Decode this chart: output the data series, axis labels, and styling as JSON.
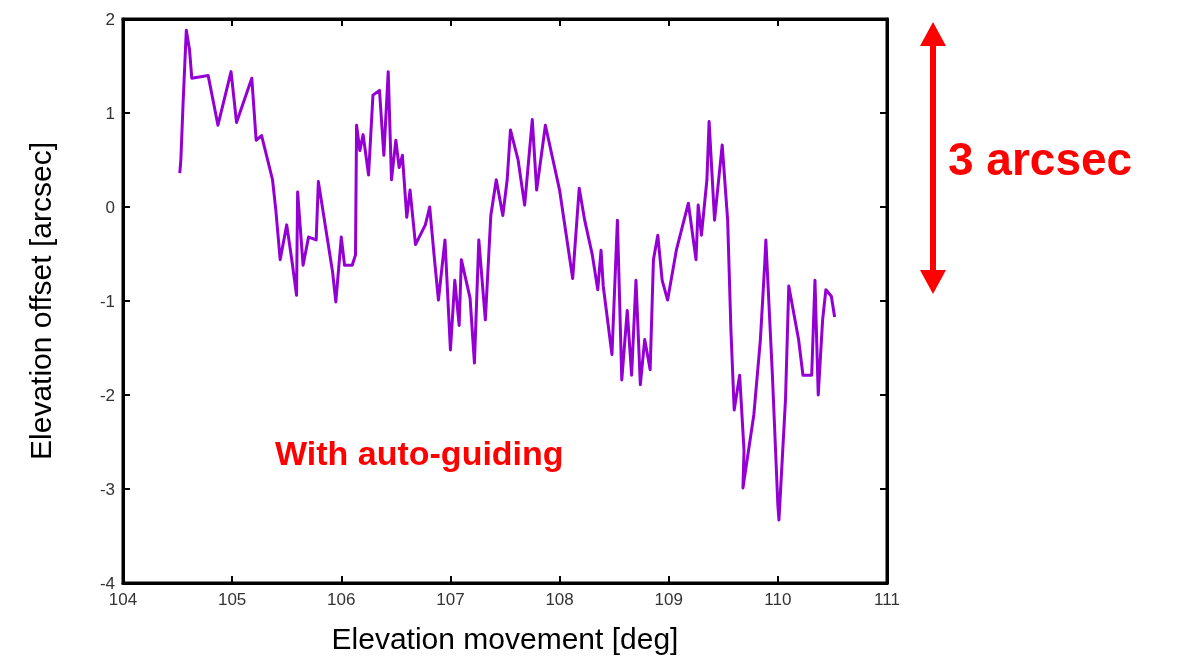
{
  "chart_data": {
    "type": "line",
    "xlabel": "Elevation movement [deg]",
    "ylabel": "Elevation offset [arcsec]",
    "annotations": [
      "3 arcsec",
      "With auto-guiding"
    ],
    "xlim": [
      104,
      111
    ],
    "xticks": [
      104,
      105,
      106,
      107,
      108,
      109,
      110,
      111
    ],
    "ylim": [
      -4,
      2
    ],
    "yticks": [
      -4,
      -3,
      -2,
      -1,
      0,
      1,
      2
    ],
    "grid": false,
    "marker": "none",
    "line_style": "solid",
    "series": [
      {
        "color": "#9400d3",
        "x": [
          104.52,
          104.53,
          104.55,
          104.58,
          104.61,
          104.63,
          104.78,
          104.87,
          104.99,
          105.04,
          105.18,
          105.22,
          105.27,
          105.37,
          105.4,
          105.44,
          105.5,
          105.55,
          105.59,
          105.6,
          105.65,
          105.7,
          105.77,
          105.79,
          105.92,
          105.95,
          106.0,
          106.03,
          106.1,
          106.13,
          106.14,
          106.17,
          106.2,
          106.25,
          106.29,
          106.35,
          106.39,
          106.43,
          106.46,
          106.5,
          106.53,
          106.56,
          106.6,
          106.63,
          106.68,
          106.77,
          106.81,
          106.85,
          106.89,
          106.95,
          107.0,
          107.04,
          107.08,
          107.1,
          107.18,
          107.22,
          107.26,
          107.32,
          107.37,
          107.42,
          107.48,
          107.52,
          107.55,
          107.62,
          107.68,
          107.75,
          107.79,
          107.87,
          108.0,
          108.12,
          108.18,
          108.23,
          108.3,
          108.35,
          108.38,
          108.4,
          108.48,
          108.53,
          108.57,
          108.62,
          108.66,
          108.7,
          108.74,
          108.78,
          108.83,
          108.86,
          108.9,
          108.94,
          108.99,
          109.07,
          109.18,
          109.25,
          109.27,
          109.3,
          109.35,
          109.37,
          109.42,
          109.49,
          109.54,
          109.57,
          109.6,
          109.65,
          109.69,
          109.68,
          109.78,
          109.84,
          109.88,
          109.89,
          109.95,
          110.0,
          110.01,
          110.07,
          110.1,
          110.19,
          110.23,
          110.31,
          110.34,
          110.37,
          110.41,
          110.44,
          110.49,
          110.52
        ],
        "values": [
          0.36,
          0.5,
          1.09,
          1.88,
          1.67,
          1.37,
          1.4,
          0.87,
          1.44,
          0.9,
          1.37,
          0.71,
          0.76,
          0.29,
          -0.03,
          -0.56,
          -0.19,
          -0.59,
          -0.94,
          0.16,
          -0.62,
          -0.32,
          -0.35,
          0.27,
          -0.69,
          -1.01,
          -0.32,
          -0.62,
          -0.62,
          -0.51,
          0.87,
          0.6,
          0.77,
          0.34,
          1.19,
          1.24,
          0.55,
          1.44,
          0.29,
          0.71,
          0.42,
          0.55,
          -0.11,
          0.18,
          -0.4,
          -0.19,
          0,
          -0.51,
          -0.99,
          -0.35,
          -1.52,
          -0.78,
          -1.26,
          -0.56,
          -0.97,
          -1.66,
          -0.35,
          -1.2,
          -0.09,
          0.29,
          -0.09,
          0.29,
          0.82,
          0.5,
          0.02,
          0.93,
          0.18,
          0.87,
          0.18,
          -0.76,
          0.2,
          -0.14,
          -0.51,
          -0.88,
          -0.46,
          -0.84,
          -1.57,
          -0.14,
          -1.84,
          -1.1,
          -1.79,
          -0.78,
          -1.89,
          -1.41,
          -1.73,
          -0.56,
          -0.3,
          -0.78,
          -0.99,
          -0.46,
          0.04,
          -0.56,
          0.02,
          -0.3,
          0.29,
          0.91,
          -0.14,
          0.66,
          -0.14,
          -1.31,
          -2.16,
          -1.79,
          -2.59,
          -2.99,
          -2.21,
          -1.41,
          -0.6,
          -0.35,
          -1.79,
          -3.17,
          -3.33,
          -2.05,
          -0.84,
          -1.41,
          -1.79,
          -1.79,
          -0.78,
          -2.0,
          -1.2,
          -0.88,
          -0.95,
          -1.17
        ]
      }
    ]
  }
}
